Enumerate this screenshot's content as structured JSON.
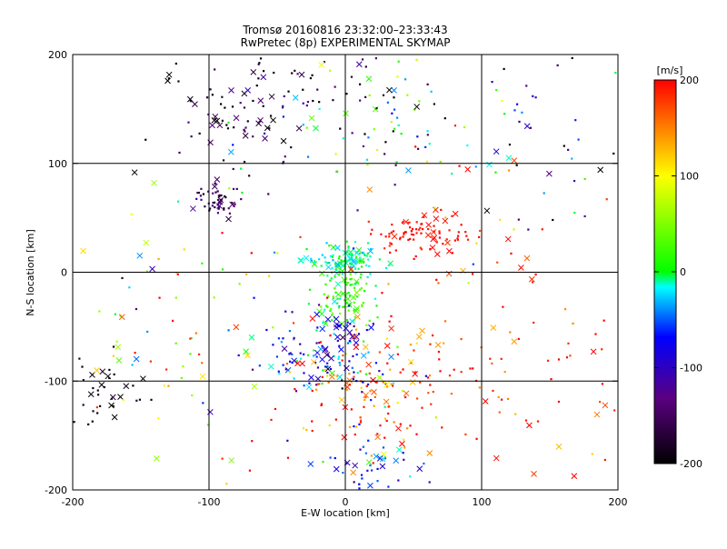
{
  "chart_data": {
    "type": "scatter",
    "title": "Tromsø 20160816 23:32:00–23:33:43",
    "subtitle": "RwPretec (8p) EXPERIMENTAL SKYMAP",
    "xlabel": "E-W location [km]",
    "ylabel": "N-S location [km]",
    "xlim": [
      -200,
      200
    ],
    "ylim": [
      -200,
      200
    ],
    "xticks": [
      -200,
      -100,
      0,
      100,
      200
    ],
    "yticks": [
      -200,
      -100,
      0,
      100,
      200
    ],
    "xtick_labels": [
      "-200",
      "-100",
      "0",
      "100",
      "200"
    ],
    "ytick_labels": [
      "-200",
      "-100",
      "0",
      "100",
      "200"
    ],
    "grid": true,
    "grid_lines": [
      -100,
      0,
      100
    ],
    "marker_types": [
      "dot",
      "x"
    ],
    "colorbar": {
      "label": "[m/s]",
      "range": [
        -200,
        200
      ],
      "ticks": [
        -200,
        -100,
        0,
        100,
        200
      ],
      "tick_labels": [
        "-200",
        "-100",
        "0",
        "100",
        "200"
      ],
      "colormap": [
        "#000000",
        "#5a0080",
        "#0000ff",
        "#00ffff",
        "#00ff00",
        "#ffff00",
        "#ff0000"
      ]
    },
    "clusters": [
      {
        "x": -95,
        "y": 65,
        "sx": 8,
        "sy": 8,
        "n": 55,
        "v": -150,
        "vs": 25
      },
      {
        "x": -75,
        "y": 150,
        "sx": 28,
        "sy": 30,
        "n": 90,
        "v": -170,
        "vs": 40
      },
      {
        "x": 0,
        "y": 10,
        "sx": 13,
        "sy": 8,
        "n": 120,
        "v": -10,
        "vs": 15
      },
      {
        "x": 0,
        "y": -25,
        "sx": 9,
        "sy": 14,
        "n": 90,
        "v": 20,
        "vs": 25
      },
      {
        "x": 55,
        "y": 35,
        "sx": 22,
        "sy": 10,
        "n": 85,
        "v": 195,
        "vs": 8
      },
      {
        "x": -10,
        "y": -75,
        "sx": 25,
        "sy": 22,
        "n": 140,
        "v": -70,
        "vs": 40
      },
      {
        "x": 20,
        "y": -110,
        "sx": 35,
        "sy": 30,
        "n": 130,
        "v": 170,
        "vs": 40
      },
      {
        "x": 20,
        "y": -175,
        "sx": 20,
        "sy": 12,
        "n": 45,
        "v": -60,
        "vs": 35
      },
      {
        "x": -180,
        "y": -115,
        "sx": 15,
        "sy": 18,
        "n": 40,
        "v": -190,
        "vs": 10
      },
      {
        "x": 20,
        "y": 150,
        "sx": 45,
        "sy": 35,
        "n": 110,
        "v": -60,
        "vs": 120
      },
      {
        "x": 110,
        "y": -60,
        "sx": 60,
        "sy": 70,
        "n": 120,
        "v": 180,
        "vs": 40
      },
      {
        "x": -120,
        "y": -60,
        "sx": 50,
        "sy": 80,
        "n": 90,
        "v": 60,
        "vs": 90
      },
      {
        "x": 150,
        "y": 120,
        "sx": 40,
        "sy": 60,
        "n": 50,
        "v": -100,
        "vs": 90
      }
    ]
  }
}
